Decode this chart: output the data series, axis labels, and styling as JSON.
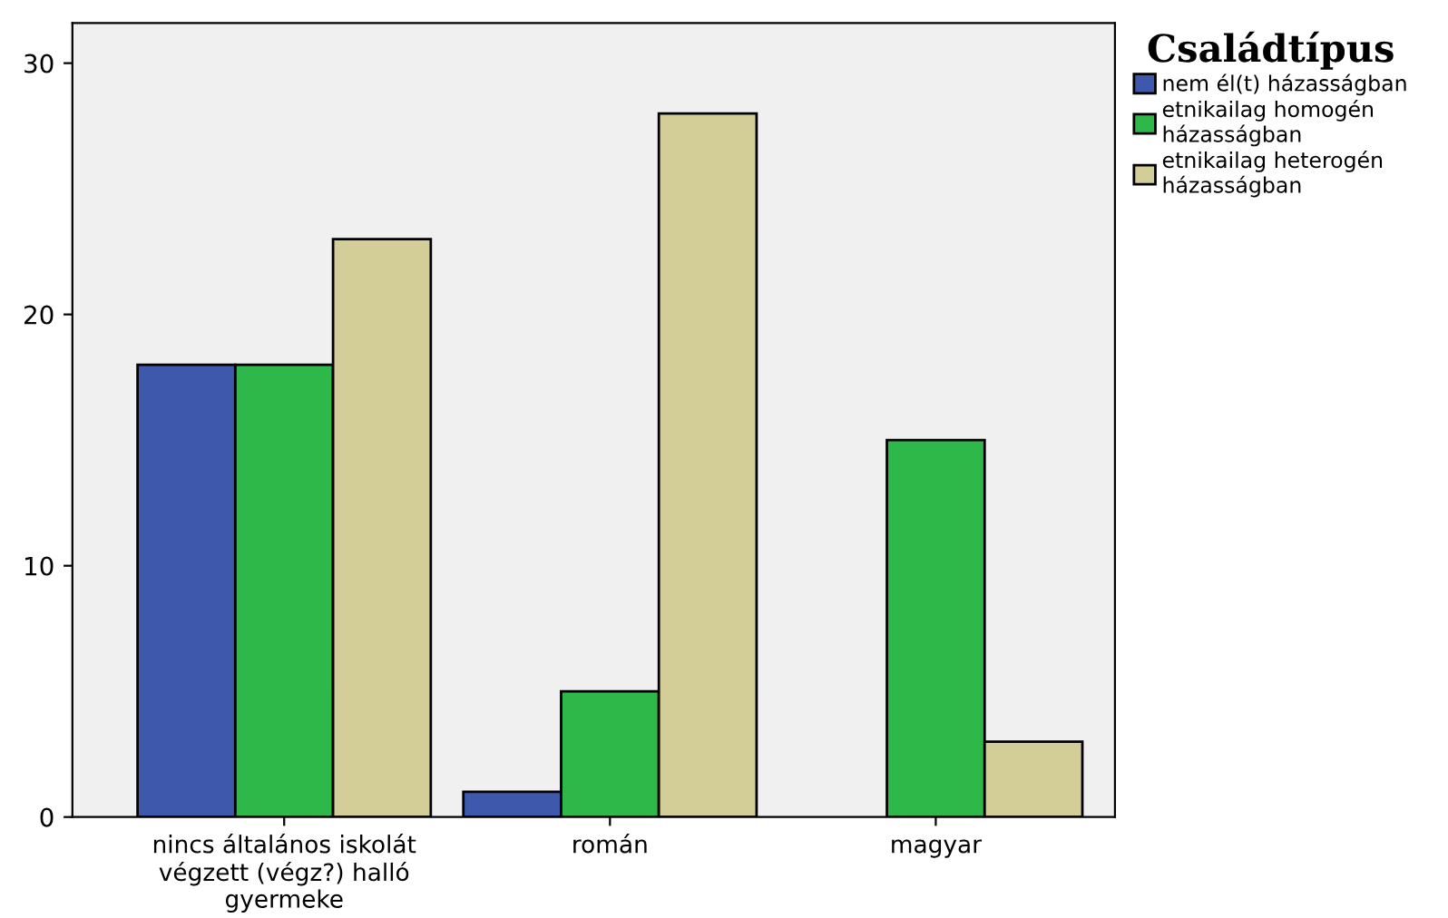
{
  "chart_data": {
    "type": "bar",
    "legend_title": "Családtípus",
    "legend": "top right",
    "categories": [
      "nincs általános iskolát\nvégzett (végz?) halló\ngyermeke",
      "román",
      "magyar"
    ],
    "series": [
      {
        "name": "nem él(t) házasságban",
        "color": "#3e58ac",
        "values": [
          18,
          1,
          null
        ]
      },
      {
        "name": "etnikailag homogén\nházasságban",
        "color": "#2fb84a",
        "values": [
          18,
          5,
          15
        ]
      },
      {
        "name": "etnikailag heterogén\nházasságban",
        "color": "#d3ce98",
        "values": [
          23,
          28,
          3
        ]
      }
    ],
    "ylim": [
      0,
      31.6
    ],
    "yticks": [
      0,
      10,
      20,
      30
    ],
    "grid": false
  }
}
